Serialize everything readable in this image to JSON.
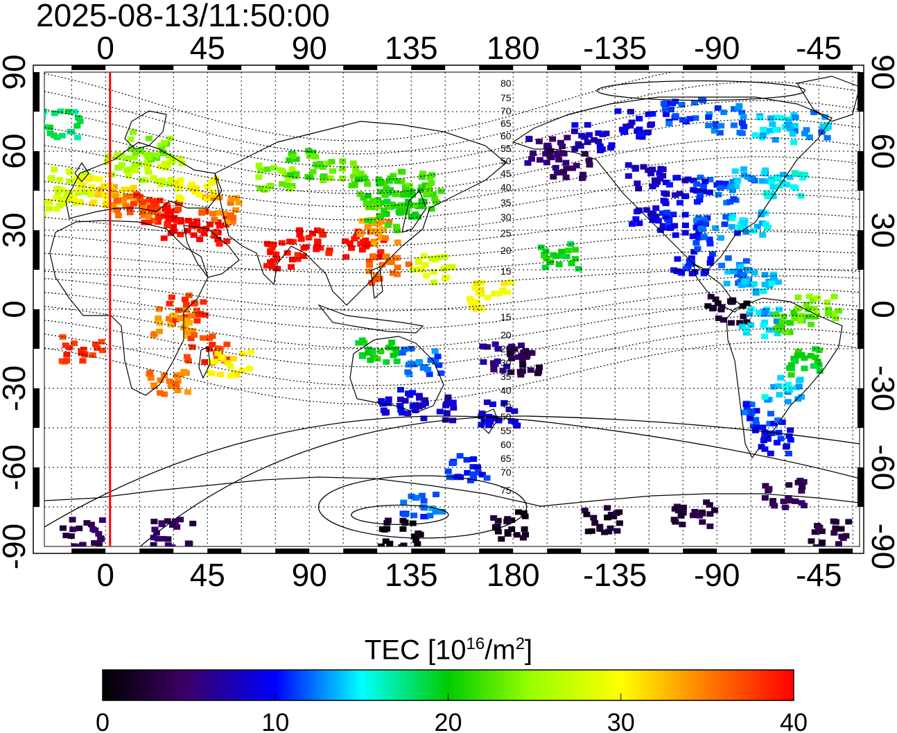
{
  "title": "2025-08-13/11:50:00",
  "map": {
    "top_lon_ticks": [
      "0",
      "45",
      "90",
      "135",
      "180",
      "-135",
      "-90",
      "-45"
    ],
    "bottom_lon_ticks": [
      "0",
      "45",
      "90",
      "135",
      "180",
      "-135",
      "-90",
      "-45"
    ],
    "left_lat_ticks": [
      "90",
      "60",
      "30",
      "0",
      "-30",
      "-60",
      "-90"
    ],
    "right_lat_ticks": [
      "90",
      "60",
      "30",
      "0",
      "-30",
      "-60",
      "-90"
    ],
    "terminator_longitude": 2,
    "contour_labels_north": [
      "80",
      "75",
      "70",
      "65",
      "60",
      "55",
      "50",
      "45",
      "40",
      "35",
      "30",
      "25",
      "20",
      "15"
    ],
    "contour_labels_south": [
      "15",
      "20",
      "25",
      "30",
      "35",
      "40",
      "45",
      "50",
      "55",
      "60",
      "65",
      "70",
      "75"
    ],
    "colors": {
      "terminator": "#ff0000",
      "coast": "#000000",
      "grid": "#000000"
    }
  },
  "colorbar": {
    "title_main": "TEC  [10",
    "title_exp": "16",
    "title_mid": "/m",
    "title_exp2": "2",
    "title_end": "]",
    "range": [
      0,
      40
    ],
    "tick_labels": [
      "0",
      "10",
      "20",
      "30",
      "40"
    ]
  },
  "tec_patches": [
    {
      "lon": -20,
      "lat": 40,
      "v": 28
    },
    {
      "lon": -15,
      "lat": 48,
      "v": 27
    },
    {
      "lon": -5,
      "lat": 45,
      "v": 30
    },
    {
      "lon": 5,
      "lat": 42,
      "v": 32
    },
    {
      "lon": 12,
      "lat": 40,
      "v": 35
    },
    {
      "lon": 20,
      "lat": 38,
      "v": 38
    },
    {
      "lon": 28,
      "lat": 36,
      "v": 39
    },
    {
      "lon": 35,
      "lat": 32,
      "v": 40
    },
    {
      "lon": 45,
      "lat": 30,
      "v": 40
    },
    {
      "lon": 50,
      "lat": 38,
      "v": 35
    },
    {
      "lon": 40,
      "lat": 45,
      "v": 30
    },
    {
      "lon": 25,
      "lat": 52,
      "v": 27
    },
    {
      "lon": 10,
      "lat": 55,
      "v": 26
    },
    {
      "lon": 20,
      "lat": 62,
      "v": 24
    },
    {
      "lon": -20,
      "lat": 70,
      "v": 18
    },
    {
      "lon": 75,
      "lat": 50,
      "v": 24
    },
    {
      "lon": 90,
      "lat": 55,
      "v": 22
    },
    {
      "lon": 105,
      "lat": 52,
      "v": 23
    },
    {
      "lon": 80,
      "lat": 20,
      "v": 40
    },
    {
      "lon": 90,
      "lat": 25,
      "v": 40
    },
    {
      "lon": 115,
      "lat": 25,
      "v": 40
    },
    {
      "lon": 120,
      "lat": 30,
      "v": 34
    },
    {
      "lon": 125,
      "lat": 35,
      "v": 22
    },
    {
      "lon": 130,
      "lat": 40,
      "v": 20
    },
    {
      "lon": 140,
      "lat": 42,
      "v": 21
    },
    {
      "lon": 135,
      "lat": 48,
      "v": 22
    },
    {
      "lon": 118,
      "lat": 45,
      "v": 21
    },
    {
      "lon": 125,
      "lat": 15,
      "v": 36
    },
    {
      "lon": 145,
      "lat": 15,
      "v": 28
    },
    {
      "lon": 170,
      "lat": 5,
      "v": 30
    },
    {
      "lon": 35,
      "lat": 0,
      "v": 38
    },
    {
      "lon": 30,
      "lat": -5,
      "v": 34
    },
    {
      "lon": 45,
      "lat": -15,
      "v": 38
    },
    {
      "lon": 55,
      "lat": -20,
      "v": 30
    },
    {
      "lon": 28,
      "lat": -28,
      "v": 35
    },
    {
      "lon": -10,
      "lat": -15,
      "v": 38
    },
    {
      "lon": 120,
      "lat": -15,
      "v": 20
    },
    {
      "lon": 140,
      "lat": -20,
      "v": 12
    },
    {
      "lon": 130,
      "lat": -35,
      "v": 9
    },
    {
      "lon": 145,
      "lat": -38,
      "v": 8
    },
    {
      "lon": 175,
      "lat": -40,
      "v": 9
    },
    {
      "lon": 175,
      "lat": -18,
      "v": 6
    },
    {
      "lon": 185,
      "lat": -20,
      "v": 3
    },
    {
      "lon": 160,
      "lat": -60,
      "v": 10
    },
    {
      "lon": 140,
      "lat": -75,
      "v": 12
    },
    {
      "lon": 200,
      "lat": 20,
      "v": 20
    },
    {
      "lon": 195,
      "lat": 60,
      "v": 6
    },
    {
      "lon": 205,
      "lat": 55,
      "v": 5
    },
    {
      "lon": 215,
      "lat": 65,
      "v": 8
    },
    {
      "lon": 235,
      "lat": 70,
      "v": 9
    },
    {
      "lon": 255,
      "lat": 75,
      "v": 11
    },
    {
      "lon": 275,
      "lat": 72,
      "v": 12
    },
    {
      "lon": 295,
      "lat": 68,
      "v": 14
    },
    {
      "lon": 310,
      "lat": 70,
      "v": 13
    },
    {
      "lon": 240,
      "lat": 50,
      "v": 8
    },
    {
      "lon": 255,
      "lat": 45,
      "v": 9
    },
    {
      "lon": 270,
      "lat": 45,
      "v": 11
    },
    {
      "lon": 285,
      "lat": 48,
      "v": 13
    },
    {
      "lon": 300,
      "lat": 48,
      "v": 15
    },
    {
      "lon": 240,
      "lat": 35,
      "v": 9
    },
    {
      "lon": 255,
      "lat": 32,
      "v": 10
    },
    {
      "lon": 270,
      "lat": 30,
      "v": 12
    },
    {
      "lon": 285,
      "lat": 32,
      "v": 14
    },
    {
      "lon": 260,
      "lat": 18,
      "v": 10
    },
    {
      "lon": 280,
      "lat": 15,
      "v": 13
    },
    {
      "lon": 290,
      "lat": 10,
      "v": 14
    },
    {
      "lon": 275,
      "lat": 0,
      "v": 2
    },
    {
      "lon": 290,
      "lat": -5,
      "v": 14
    },
    {
      "lon": 305,
      "lat": -5,
      "v": 22
    },
    {
      "lon": 315,
      "lat": 0,
      "v": 24
    },
    {
      "lon": 310,
      "lat": -20,
      "v": 20
    },
    {
      "lon": 300,
      "lat": -30,
      "v": 14
    },
    {
      "lon": 290,
      "lat": -40,
      "v": 11
    },
    {
      "lon": 295,
      "lat": -50,
      "v": 10
    },
    {
      "lon": 300,
      "lat": -70,
      "v": 4
    },
    {
      "lon": 260,
      "lat": -78,
      "v": 3
    },
    {
      "lon": 220,
      "lat": -80,
      "v": 2
    },
    {
      "lon": 180,
      "lat": -82,
      "v": 2
    },
    {
      "lon": 130,
      "lat": -85,
      "v": 1
    },
    {
      "lon": 30,
      "lat": -85,
      "v": 4
    },
    {
      "lon": -10,
      "lat": -85,
      "v": 4
    },
    {
      "lon": 320,
      "lat": -85,
      "v": 3
    }
  ]
}
